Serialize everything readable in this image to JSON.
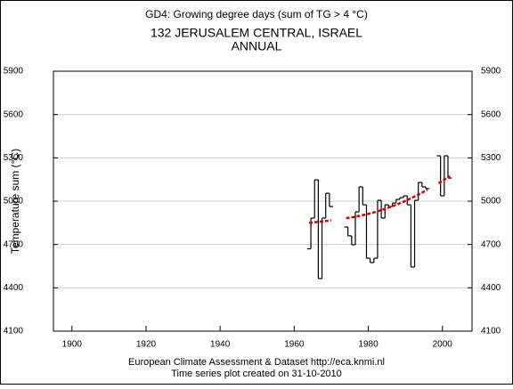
{
  "chart_data": {
    "type": "step",
    "title": "GD4: Growing degree days (sum of TG > 4 °C)",
    "subtitle": [
      "132 JERUSALEM CENTRAL, ISRAEL",
      "ANNUAL"
    ],
    "ylabel": "Temperature sum (°C)",
    "footer": [
      "European Climate Assessment & Dataset  http://eca.knmi.nl",
      "Time series plot created on 31-10-2010"
    ],
    "x": [
      1964,
      1965,
      1966,
      1967,
      1968,
      1969,
      1970,
      1971,
      1972,
      1973,
      1974,
      1975,
      1976,
      1977,
      1978,
      1979,
      1980,
      1981,
      1982,
      1983,
      1984,
      1985,
      1986,
      1987,
      1988,
      1989,
      1990,
      1991,
      1992,
      1993,
      1994,
      1995,
      1996,
      1997,
      1998,
      1999,
      2000,
      2001,
      2002
    ],
    "series": [
      {
        "color": "#000000",
        "values": [
          4670,
          4883,
          5148,
          4464,
          4883,
          5055,
          4963,
          null,
          null,
          null,
          4821,
          4760,
          4698,
          4926,
          5099,
          4975,
          4605,
          4575,
          4605,
          5006,
          4883,
          4975,
          4963,
          4987,
          5012,
          5024,
          5037,
          4975,
          4544,
          5006,
          5130,
          5099,
          5087,
          null,
          null,
          5314,
          5037,
          5314,
          5160
        ]
      },
      {
        "color": "#dd0000",
        "values": [
          4850,
          4852,
          4855,
          4858,
          4861,
          4864,
          4868,
          null,
          null,
          null,
          4882,
          4886,
          4890,
          4895,
          4900,
          4906,
          4912,
          4919,
          4926,
          4934,
          4942,
          4951,
          4960,
          4970,
          4980,
          4991,
          5002,
          5014,
          5026,
          5039,
          5052,
          5066,
          5080,
          null,
          null,
          5125,
          5141,
          5157,
          5174
        ]
      }
    ],
    "xlim": [
      1895,
      2008
    ],
    "xticks": [
      1900,
      1920,
      1940,
      1960,
      1980,
      2000
    ],
    "ylim": [
      4100,
      5900
    ],
    "yticks": [
      4100,
      4400,
      4700,
      5000,
      5300,
      5600,
      5900
    ],
    "grid": true
  }
}
